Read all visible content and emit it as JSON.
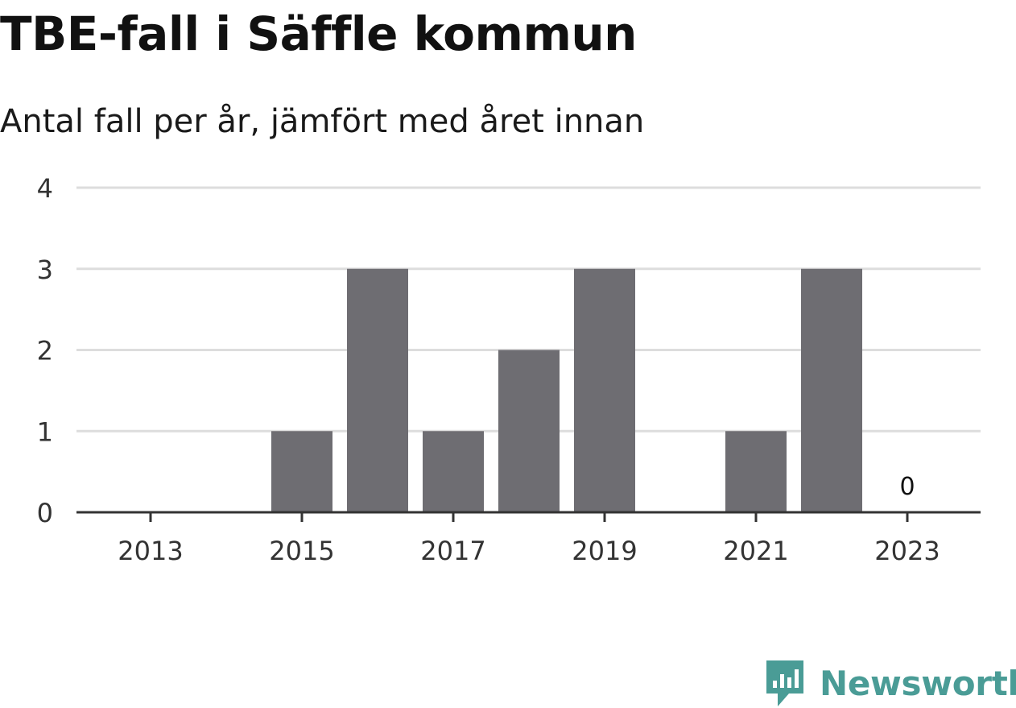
{
  "title": "TBE-fall i Säffle kommun",
  "subtitle": "Antal fall per år, jämfört med året innan",
  "brand": {
    "name": "Newsworthy",
    "color": "#4a9c96"
  },
  "chart_data": {
    "type": "bar",
    "categories": [
      2013,
      2014,
      2015,
      2016,
      2017,
      2018,
      2019,
      2020,
      2021,
      2022,
      2023
    ],
    "values": [
      0,
      0,
      1,
      3,
      1,
      2,
      3,
      0,
      1,
      3,
      0
    ],
    "x_tick_labels": [
      "2013",
      "2015",
      "2017",
      "2019",
      "2021",
      "2023"
    ],
    "y_ticks": [
      0,
      1,
      2,
      3,
      4
    ],
    "ylim": [
      0,
      4
    ],
    "annotations": [
      {
        "category": 2023,
        "text": "0"
      }
    ],
    "bar_color": "#6e6d72",
    "grid": true
  }
}
